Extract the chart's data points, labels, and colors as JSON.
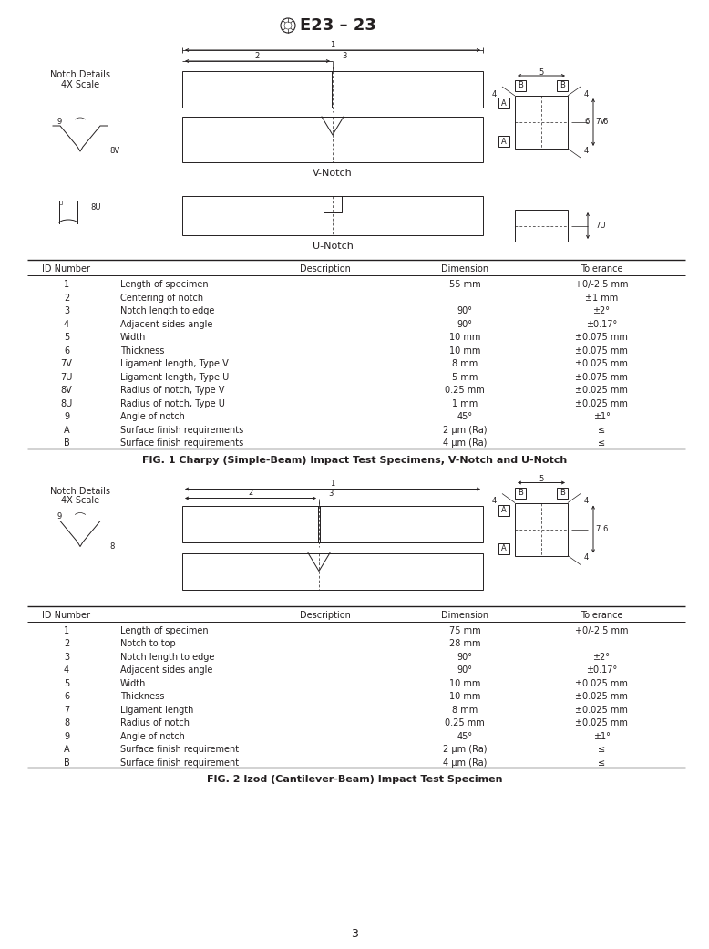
{
  "title": "E23 – 23",
  "fig1_caption": "FIG. 1 Charpy (Simple-Beam) Impact Test Specimens, V-Notch and U-Notch",
  "fig2_caption": "FIG. 2 Izod (Cantilever-Beam) Impact Test Specimen",
  "page_number": "3",
  "table1_headers": [
    "ID Number",
    "Description",
    "Dimension",
    "Tolerance"
  ],
  "table1_rows": [
    [
      "1",
      "Length of specimen",
      "55 mm",
      "+0/-2.5 mm"
    ],
    [
      "2",
      "Centering of notch",
      "",
      "±1 mm"
    ],
    [
      "3",
      "Notch length to edge",
      "90°",
      "±2°"
    ],
    [
      "4",
      "Adjacent sides angle",
      "90°",
      "±0.17°"
    ],
    [
      "5",
      "Width",
      "10 mm",
      "±0.075 mm"
    ],
    [
      "6",
      "Thickness",
      "10 mm",
      "±0.075 mm"
    ],
    [
      "7V",
      "Ligament length, Type V",
      "8 mm",
      "±0.025 mm"
    ],
    [
      "7U",
      "Ligament length, Type U",
      "5 mm",
      "±0.075 mm"
    ],
    [
      "8V",
      "Radius of notch, Type V",
      "0.25 mm",
      "±0.025 mm"
    ],
    [
      "8U",
      "Radius of notch, Type U",
      "1 mm",
      "±0.025 mm"
    ],
    [
      "9",
      "Angle of notch",
      "45°",
      "±1°"
    ],
    [
      "A",
      "Surface finish requirements",
      "2 μm (Ra)",
      "≤"
    ],
    [
      "B",
      "Surface finish requirements",
      "4 μm (Ra)",
      "≤"
    ]
  ],
  "table2_headers": [
    "ID Number",
    "Description",
    "Dimension",
    "Tolerance"
  ],
  "table2_rows": [
    [
      "1",
      "Length of specimen",
      "75 mm",
      "+0/-2.5 mm"
    ],
    [
      "2",
      "Notch to top",
      "28 mm",
      ""
    ],
    [
      "3",
      "Notch length to edge",
      "90°",
      "±2°"
    ],
    [
      "4",
      "Adjacent sides angle",
      "90°",
      "±0.17°"
    ],
    [
      "5",
      "Width",
      "10 mm",
      "±0.025 mm"
    ],
    [
      "6",
      "Thickness",
      "10 mm",
      "±0.025 mm"
    ],
    [
      "7",
      "Ligament length",
      "8 mm",
      "±0.025 mm"
    ],
    [
      "8",
      "Radius of notch",
      "0.25 mm",
      "±0.025 mm"
    ],
    [
      "9",
      "Angle of notch",
      "45°",
      "±1°"
    ],
    [
      "A",
      "Surface finish requirement",
      "2 μm (Ra)",
      "≤"
    ],
    [
      "B",
      "Surface finish requirement",
      "4 μm (Ra)",
      "≤"
    ]
  ],
  "bg_color": "#ffffff",
  "line_color": "#231f20",
  "text_color": "#231f20",
  "font_size_body": 7.0,
  "font_size_label": 6.0,
  "font_size_title": 11.0,
  "font_size_caption": 8.0,
  "font_size_notch_label": 8.5
}
